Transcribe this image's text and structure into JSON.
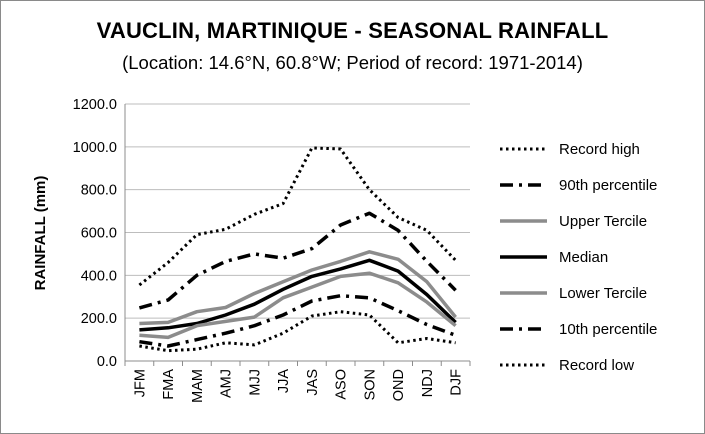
{
  "title": "VAUCLIN, MARTINIQUE - SEASONAL RAINFALL",
  "subtitle": "(Location: 14.6°N, 60.8°W; Period of record: 1971-2014)",
  "chart_data": {
    "type": "line",
    "ylabel": "RAINFALL (mm)",
    "xlabel": "",
    "ylim": [
      0,
      1200
    ],
    "yticks": [
      "0.0",
      "200.0",
      "400.0",
      "600.0",
      "800.0",
      "1000.0",
      "1200.0"
    ],
    "categories": [
      "JFM",
      "FMA",
      "MAM",
      "AMJ",
      "MJJ",
      "JJA",
      "JAS",
      "ASO",
      "SON",
      "OND",
      "NDJ",
      "DJF"
    ],
    "legend_position": "right",
    "series": [
      {
        "name": "Record high",
        "style": "dotted",
        "color": "#000000",
        "values": [
          355,
          460,
          590,
          615,
          685,
          735,
          995,
          990,
          800,
          670,
          610,
          470
        ]
      },
      {
        "name": "90th percentile",
        "style": "dashdot",
        "color": "#000000",
        "values": [
          248,
          285,
          400,
          465,
          500,
          480,
          525,
          635,
          690,
          610,
          465,
          330
        ]
      },
      {
        "name": "Upper Tercile",
        "style": "solid",
        "color": "#8c8c8c",
        "values": [
          175,
          180,
          230,
          250,
          315,
          370,
          425,
          465,
          510,
          475,
          370,
          205
        ]
      },
      {
        "name": "Median",
        "style": "solid",
        "color": "#000000",
        "values": [
          145,
          155,
          175,
          215,
          265,
          335,
          395,
          430,
          470,
          420,
          310,
          180
        ]
      },
      {
        "name": "Lower Tercile",
        "style": "solid",
        "color": "#8c8c8c",
        "values": [
          120,
          110,
          165,
          185,
          205,
          295,
          345,
          395,
          410,
          365,
          275,
          165
        ]
      },
      {
        "name": "10th percentile",
        "style": "dashdot",
        "color": "#000000",
        "values": [
          90,
          70,
          100,
          130,
          165,
          215,
          280,
          305,
          295,
          235,
          170,
          120
        ]
      },
      {
        "name": "Record low",
        "style": "dotted",
        "color": "#000000",
        "values": [
          70,
          48,
          55,
          85,
          75,
          130,
          210,
          230,
          215,
          85,
          105,
          85
        ]
      }
    ]
  }
}
